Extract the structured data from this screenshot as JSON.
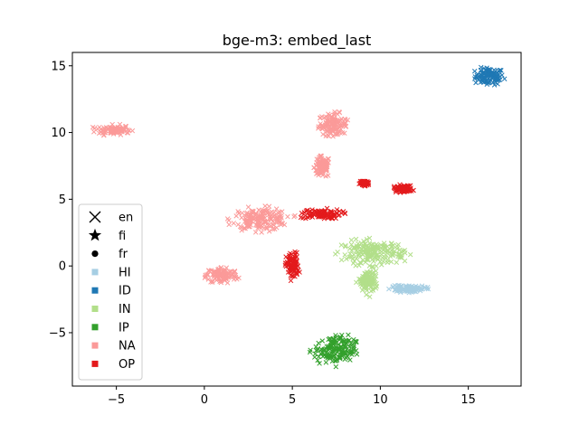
{
  "chart_data": {
    "type": "scatter",
    "title": "bge-m3: embed_last",
    "xlabel": "",
    "ylabel": "",
    "xlim": [
      -7.5,
      18.0
    ],
    "ylim": [
      -9.0,
      16.0
    ],
    "x_ticks": [
      -5,
      0,
      5,
      10,
      15
    ],
    "y_ticks": [
      -5,
      0,
      5,
      10,
      15
    ],
    "x_tick_labels": [
      "−5",
      "0",
      "5",
      "10",
      "15"
    ],
    "y_tick_labels": [
      "−5",
      "0",
      "5",
      "10",
      "15"
    ],
    "grid": false,
    "legend_position": "center-left",
    "marker_legend": [
      {
        "label": "en",
        "marker": "x"
      },
      {
        "label": "fi",
        "marker": "star"
      },
      {
        "label": "fr",
        "marker": "circle"
      }
    ],
    "category_legend": [
      {
        "label": "HI",
        "color": "#a6cee3"
      },
      {
        "label": "ID",
        "color": "#1f78b4"
      },
      {
        "label": "IN",
        "color": "#b2df8a"
      },
      {
        "label": "IP",
        "color": "#33a02c"
      },
      {
        "label": "NA",
        "color": "#fb9a99"
      },
      {
        "label": "OP",
        "color": "#e31a1c"
      }
    ],
    "clusters": [
      {
        "category": "ID",
        "cx": 16.2,
        "cy": 14.2,
        "rx": 0.9,
        "ry": 0.7
      },
      {
        "category": "NA",
        "cx": -5.2,
        "cy": 10.2,
        "rx": 1.1,
        "ry": 0.4
      },
      {
        "category": "NA",
        "cx": 7.3,
        "cy": 10.6,
        "rx": 0.9,
        "ry": 0.9
      },
      {
        "category": "NA",
        "cx": 6.7,
        "cy": 7.4,
        "rx": 0.5,
        "ry": 0.9
      },
      {
        "category": "NA",
        "cx": 3.2,
        "cy": 3.5,
        "rx": 1.8,
        "ry": 0.9
      },
      {
        "category": "NA",
        "cx": 1.0,
        "cy": -0.7,
        "rx": 1.0,
        "ry": 0.7
      },
      {
        "category": "OP",
        "cx": 6.6,
        "cy": 3.9,
        "rx": 1.3,
        "ry": 0.4
      },
      {
        "category": "OP",
        "cx": 5.0,
        "cy": 0.0,
        "rx": 0.4,
        "ry": 1.1
      },
      {
        "category": "OP",
        "cx": 11.3,
        "cy": 5.8,
        "rx": 0.6,
        "ry": 0.3
      },
      {
        "category": "OP",
        "cx": 9.1,
        "cy": 6.2,
        "rx": 0.3,
        "ry": 0.2
      },
      {
        "category": "IN",
        "cx": 9.6,
        "cy": 1.0,
        "rx": 2.0,
        "ry": 1.0
      },
      {
        "category": "IN",
        "cx": 9.3,
        "cy": -1.2,
        "rx": 0.6,
        "ry": 1.0
      },
      {
        "category": "HI",
        "cx": 11.6,
        "cy": -1.7,
        "rx": 1.1,
        "ry": 0.3
      },
      {
        "category": "IP",
        "cx": 7.4,
        "cy": -6.3,
        "rx": 1.3,
        "ry": 1.2
      }
    ]
  }
}
